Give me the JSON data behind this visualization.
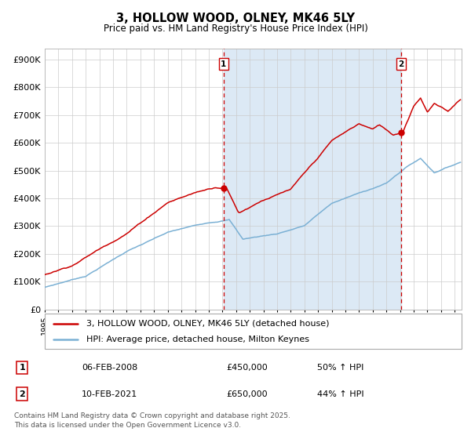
{
  "title": "3, HOLLOW WOOD, OLNEY, MK46 5LY",
  "subtitle": "Price paid vs. HM Land Registry's House Price Index (HPI)",
  "background_color": "#ffffff",
  "plot_bg_color": "#ffffff",
  "shade_color": "#dce9f5",
  "grid_color": "#cccccc",
  "red_line_color": "#cc0000",
  "blue_line_color": "#7ab0d4",
  "vline_color": "#cc0000",
  "table_row1": [
    "1",
    "06-FEB-2008",
    "£450,000",
    "50% ↑ HPI"
  ],
  "table_row2": [
    "2",
    "10-FEB-2021",
    "£650,000",
    "44% ↑ HPI"
  ],
  "legend_line1": "3, HOLLOW WOOD, OLNEY, MK46 5LY (detached house)",
  "legend_line2": "HPI: Average price, detached house, Milton Keynes",
  "footnote": "Contains HM Land Registry data © Crown copyright and database right 2025.\nThis data is licensed under the Open Government Licence v3.0.",
  "ylim": [
    0,
    940000
  ],
  "yticks": [
    0,
    100000,
    200000,
    300000,
    400000,
    500000,
    600000,
    700000,
    800000,
    900000
  ],
  "ytick_labels": [
    "£0",
    "£100K",
    "£200K",
    "£300K",
    "£400K",
    "£500K",
    "£600K",
    "£700K",
    "£800K",
    "£900K"
  ],
  "sale1_year": 2008.083,
  "sale2_year": 2021.083,
  "sale1_value": 450000,
  "sale2_value": 650000,
  "xlim_start": 1995.0,
  "xlim_end": 2025.5
}
